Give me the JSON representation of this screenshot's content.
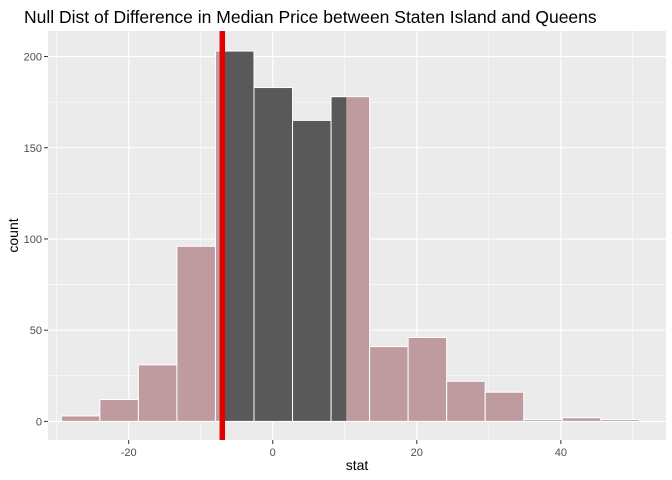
{
  "chart_data": {
    "type": "bar",
    "title": "Null Dist of Difference in Median Price between Staten Island and Queens",
    "xlabel": "stat",
    "ylabel": "count",
    "xlim": [
      -31.2,
      54.6
    ],
    "ylim": [
      -10.2,
      214
    ],
    "x_ticks": [
      -20,
      0,
      20,
      40
    ],
    "x_tick_labels": [
      "-20",
      "0",
      "20",
      "40"
    ],
    "y_ticks": [
      0,
      50,
      100,
      150,
      200
    ],
    "y_tick_labels": [
      "0",
      "50",
      "100",
      "150",
      "200"
    ],
    "grid": true,
    "bins": [
      {
        "x0": -29.35,
        "x1": -24.0,
        "count": 3,
        "shaded": false
      },
      {
        "x0": -24.0,
        "x1": -18.65,
        "count": 12,
        "shaded": false
      },
      {
        "x0": -18.65,
        "x1": -13.3,
        "count": 31,
        "shaded": false
      },
      {
        "x0": -13.3,
        "x1": -7.95,
        "count": 96,
        "shaded": false
      },
      {
        "x0": -7.95,
        "x1": -2.6,
        "count": 203,
        "shaded": true,
        "shade_from": -7.0
      },
      {
        "x0": -2.6,
        "x1": 2.75,
        "count": 183,
        "shaded": true
      },
      {
        "x0": 2.75,
        "x1": 8.1,
        "count": 165,
        "shaded": true
      },
      {
        "x0": 8.1,
        "x1": 13.45,
        "count": 178,
        "shaded": true,
        "shade_to": 10.2
      },
      {
        "x0": 13.45,
        "x1": 18.8,
        "count": 41,
        "shaded": false
      },
      {
        "x0": 18.8,
        "x1": 24.15,
        "count": 46,
        "shaded": false
      },
      {
        "x0": 24.15,
        "x1": 29.5,
        "count": 22,
        "shaded": false
      },
      {
        "x0": 29.5,
        "x1": 34.85,
        "count": 16,
        "shaded": false
      },
      {
        "x0": 34.85,
        "x1": 40.2,
        "count": 1,
        "shaded": false
      },
      {
        "x0": 40.2,
        "x1": 45.55,
        "count": 2,
        "shaded": false
      },
      {
        "x0": 45.55,
        "x1": 50.9,
        "count": 1,
        "shaded": false
      }
    ],
    "observed_stat": -7.0,
    "colors": {
      "panel_bg": "#ebebeb",
      "grid": "#ffffff",
      "bar_fill": "#bf9ba0",
      "bar_outline": "#ffffff",
      "shaded_fill": "#595959",
      "observed_line": "#e10000"
    }
  }
}
